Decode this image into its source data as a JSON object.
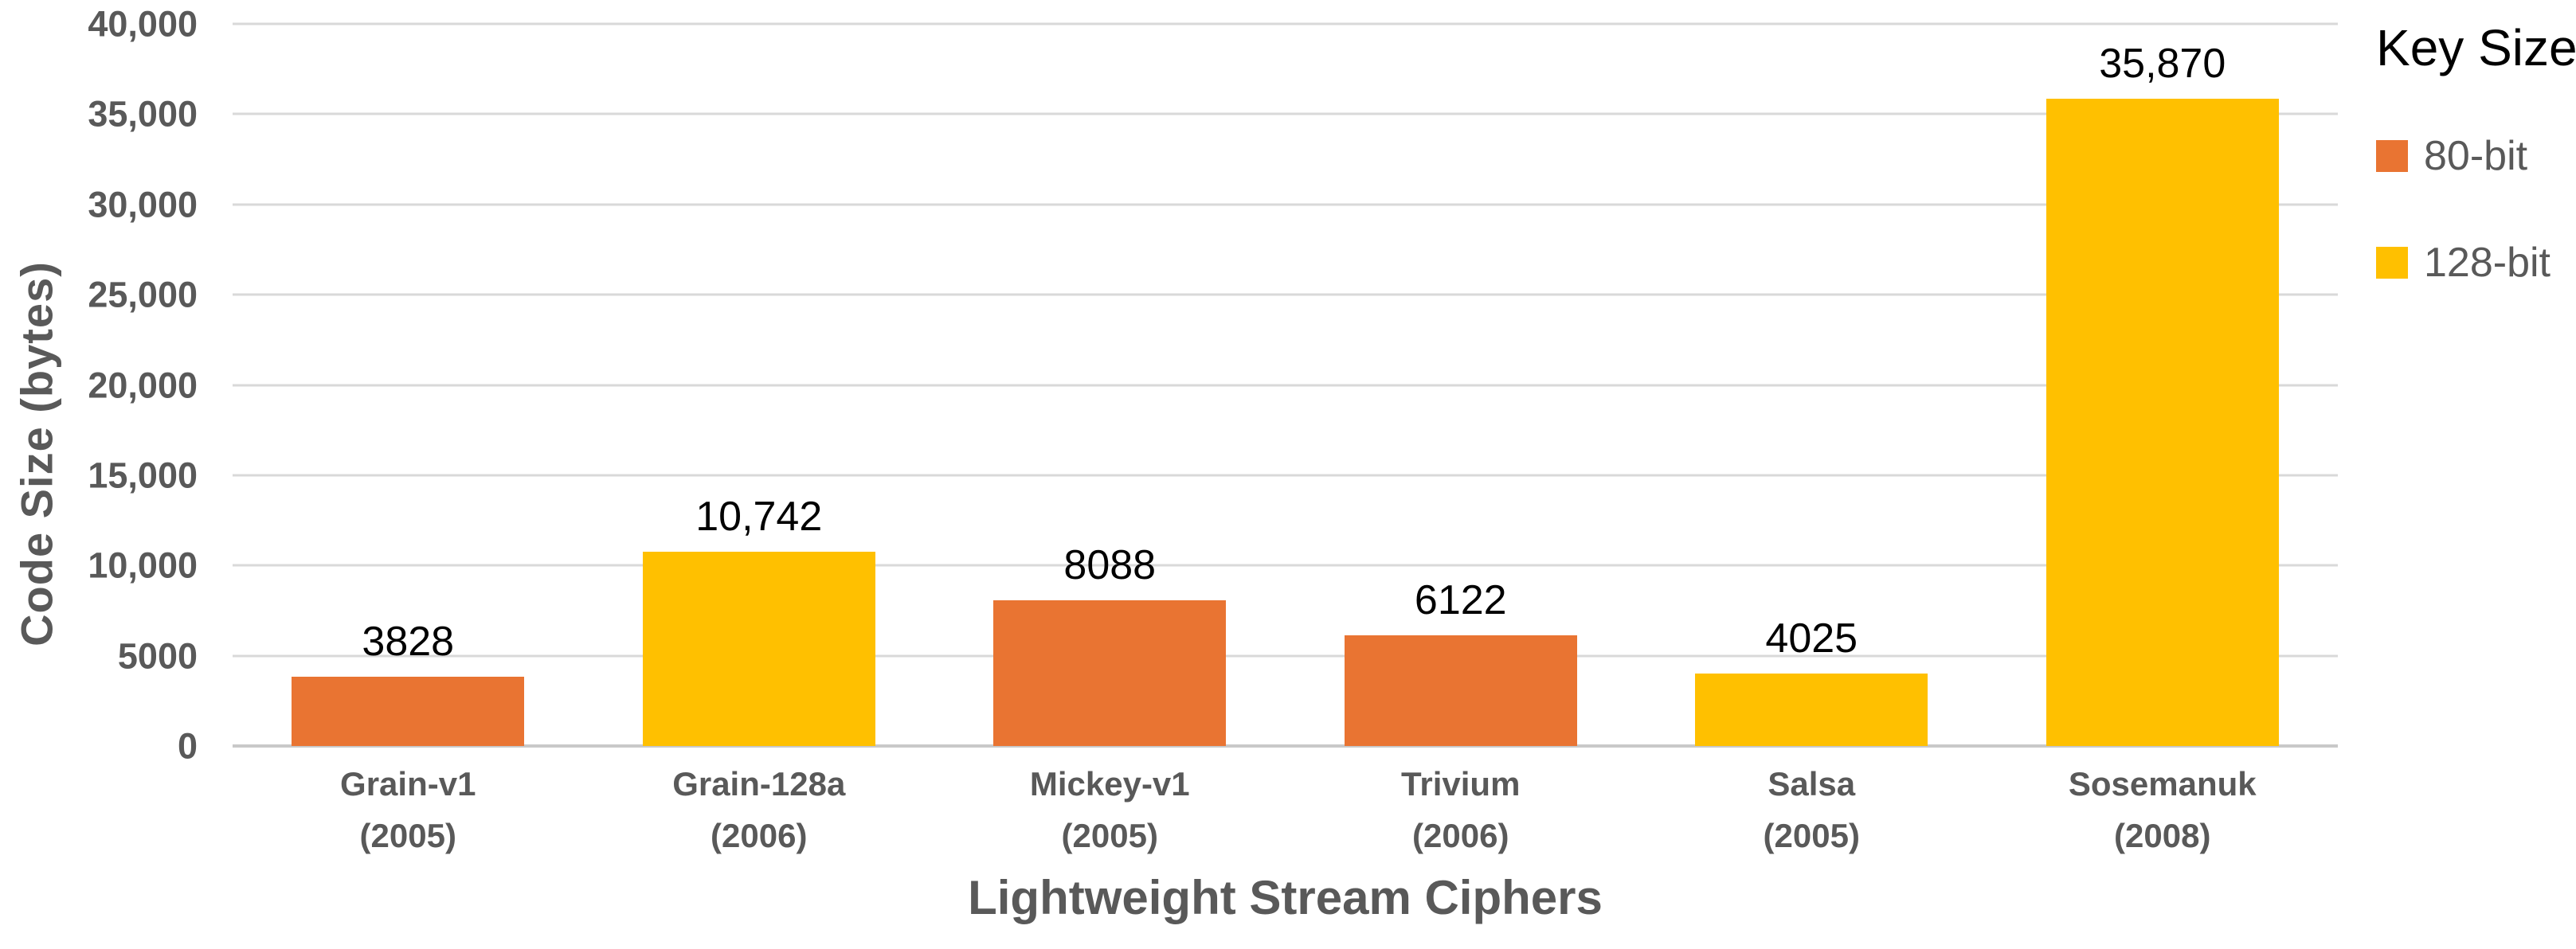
{
  "chart_data": {
    "type": "bar",
    "title": "",
    "xlabel": "Lightweight Stream Ciphers",
    "ylabel": "Code Size  (bytes)",
    "ylim": [
      0,
      40000
    ],
    "ytick_step": 5000,
    "grid": true,
    "yticks": [
      {
        "value": 0,
        "label": "0"
      },
      {
        "value": 5000,
        "label": "5000"
      },
      {
        "value": 10000,
        "label": "10,000"
      },
      {
        "value": 15000,
        "label": "15,000"
      },
      {
        "value": 20000,
        "label": "20,000"
      },
      {
        "value": 25000,
        "label": "25,000"
      },
      {
        "value": 30000,
        "label": "30,000"
      },
      {
        "value": 35000,
        "label": "35,000"
      },
      {
        "value": 40000,
        "label": "40,000"
      }
    ],
    "legend": {
      "title": "Key Size",
      "position": "top-right",
      "items": [
        {
          "label": "80-bit",
          "color": "#E97432"
        },
        {
          "label": "128-bit",
          "color": "#FFC000"
        }
      ]
    },
    "bars": [
      {
        "category": "Grain-v1",
        "year": "(2005)",
        "series": "80-bit",
        "value": 3828,
        "label": "3828"
      },
      {
        "category": "Grain-128a",
        "year": "(2006)",
        "series": "128-bit",
        "value": 10742,
        "label": "10,742"
      },
      {
        "category": "Mickey-v1",
        "year": "(2005)",
        "series": "80-bit",
        "value": 8088,
        "label": "8088"
      },
      {
        "category": "Trivium",
        "year": "(2006)",
        "series": "80-bit",
        "value": 6122,
        "label": "6122"
      },
      {
        "category": "Salsa",
        "year": "(2005)",
        "series": "128-bit",
        "value": 4025,
        "label": "4025"
      },
      {
        "category": "Sosemanuk",
        "year": "(2008)",
        "series": "128-bit",
        "value": 35870,
        "label": "35,870"
      }
    ]
  },
  "colors": {
    "gridline": "#D9D9D9",
    "axis_line": "#C9C9C9",
    "axis_text": "#595959",
    "data_label_text": "#000000",
    "background": "#FFFFFF"
  }
}
